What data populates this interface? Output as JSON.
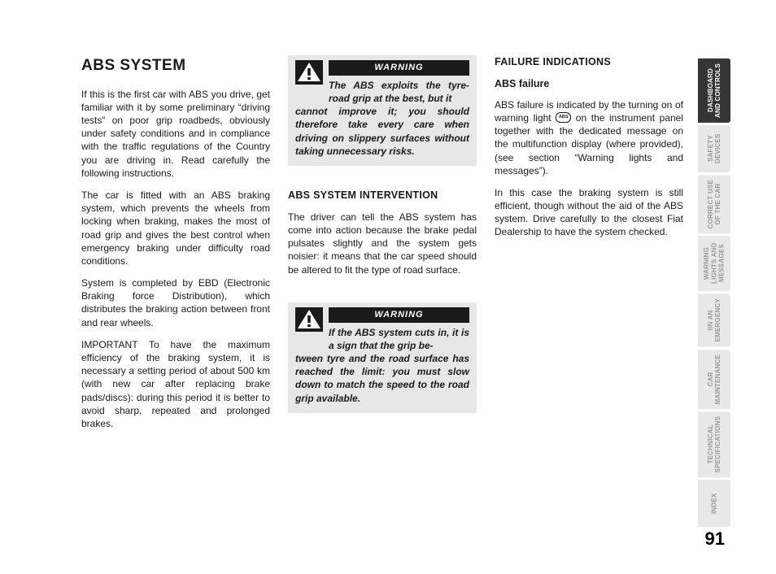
{
  "tabs": [
    {
      "label": "DASHBOARD\nAND CONTROLS",
      "active": true,
      "tall": true
    },
    {
      "label": "SAFETY\nDEVICES",
      "active": false,
      "tall": false
    },
    {
      "label": "CORRECT USE\nOF THE CAR",
      "active": false,
      "tall": true
    },
    {
      "label": "WARNING\nLIGHTS AND\nMESSAGES",
      "active": false,
      "tall": true
    },
    {
      "label": "IIN AN\nEMERGENCY",
      "active": false,
      "tall": false
    },
    {
      "label": "CAR\nMAINTENANCE",
      "active": false,
      "tall": true
    },
    {
      "label": "TECHNICAL\nSPECIFICATIONS",
      "active": false,
      "tall": true
    },
    {
      "label": "INDEX",
      "active": false,
      "tall": false
    }
  ],
  "title": "ABS SYSTEM",
  "col1": {
    "p1": "If this is the first car with ABS you drive, get familiar with it by some preliminary “driving tests” on poor grip roadbeds, obviously under safety conditions and in compliance with the traffic regulations of the Country you are driving in. Read carefully the following instructions.",
    "p2": "The car is fitted with an ABS braking system, which prevents the wheels from locking when braking, makes the most of road grip and gives the best control when emergency braking under difficulty road conditions.",
    "p3": "System is completed by EBD (Electronic Braking force Distribution), which distributes the braking action between front and rear wheels.",
    "p4": "IMPORTANT To have the maximum efficiency of the braking system, it is necessary a setting period of about 500 km (with new car after replacing brake pads/discs): during this period it is better to avoid sharp, repeated and prolonged brakes."
  },
  "col2": {
    "warn1_title": "WARNING",
    "warn1_lead": "The ABS exploits the tyre-road grip at the best, but it",
    "warn1_rest": "cannot improve it; you should therefore take every care when driving on slippery surfaces without taking unnecessary risks.",
    "h2": "ABS SYSTEM INTERVENTION",
    "p1": "The driver can tell the ABS system has come into action because the brake pedal pulsates slightly and the system gets noisier: it means that the car speed should be altered to fit the type of road surface.",
    "warn2_title": "WARNING",
    "warn2_lead": "If the ABS system cuts in, it is a sign that the grip be-",
    "warn2_rest": "tween tyre and the road surface has reached the limit: you must slow down to match the speed to the road grip available."
  },
  "col3": {
    "h2": "FAILURE INDICATIONS",
    "h3": "ABS failure",
    "p1a": "ABS failure is indicated by the turning on of warning light ",
    "p1b": " on the instrument panel together with the dedicated message on the multifunction display (where provided), (see section “Warning lights and messages”).",
    "p2": "In this case the braking system is still efficient, though without the aid of the ABS system. Drive carefully to the closest Fiat Dealership to have the system checked.",
    "abs_icon_text": "ABS"
  },
  "page_number": "91"
}
